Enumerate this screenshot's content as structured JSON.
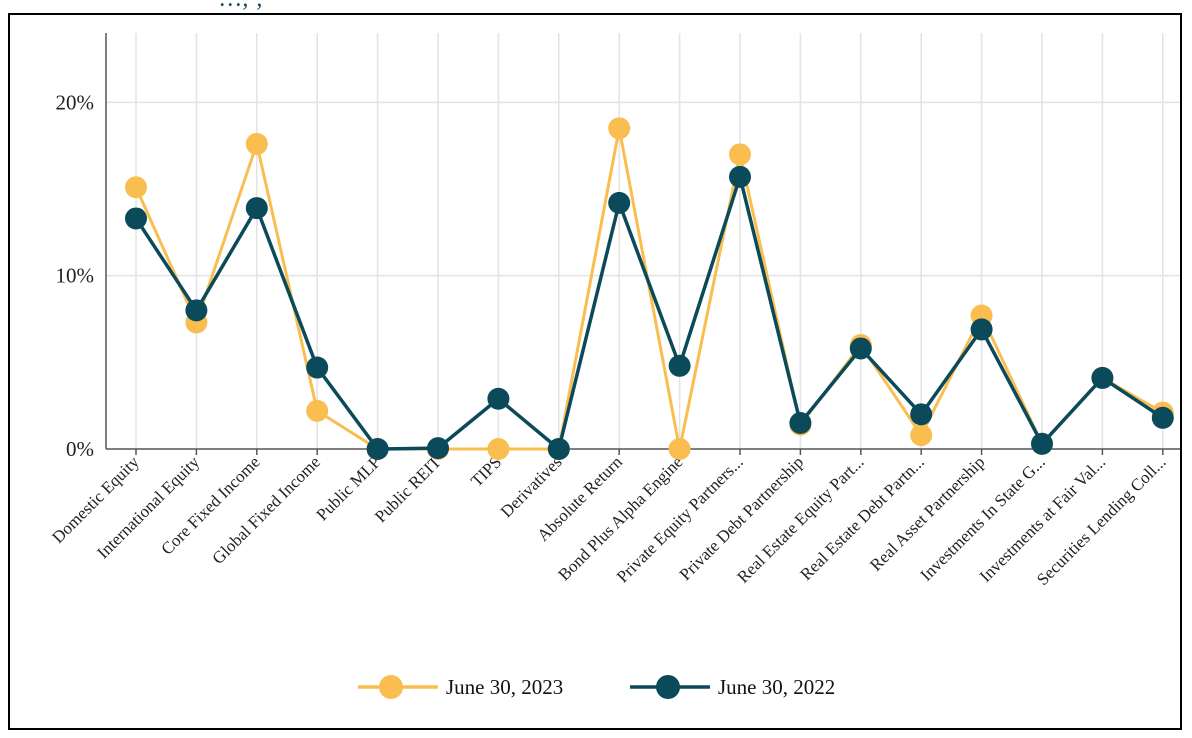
{
  "title_fragment": "…, ,",
  "colors": {
    "series_2023": "#f9be4f",
    "series_2022": "#0b4a5a",
    "grid": "#e3e3e3",
    "axis": "#555555"
  },
  "chart_data": {
    "type": "line",
    "title": "",
    "xlabel": "",
    "ylabel": "",
    "ylim": [
      0,
      0.24
    ],
    "y_ticks": [
      {
        "value": 0,
        "label": "0%"
      },
      {
        "value": 0.1,
        "label": "10%"
      },
      {
        "value": 0.2,
        "label": "20%"
      }
    ],
    "categories": [
      "Domestic Equity",
      "International Equity",
      "Core Fixed Income",
      "Global Fixed Income",
      "Public MLP",
      "Public REIT",
      "TIPS",
      "Derivatives",
      "Absolute Return",
      "Bond Plus Alpha Engine",
      "Private Equity Partners...",
      "Private Debt Partnership",
      "Real Estate Equity Part...",
      "Real Estate Debt Partn...",
      "Real Asset Partnership",
      "Investments In State G...",
      "Investments at Fair Val...",
      "Securities Lending Coll..."
    ],
    "series": [
      {
        "name": "June 30, 2023",
        "color": "#f9be4f",
        "values": [
          0.151,
          0.073,
          0.176,
          0.022,
          0.0,
          0.0,
          0.0,
          0.0,
          0.185,
          0.0,
          0.17,
          0.014,
          0.06,
          0.008,
          0.077,
          0.003,
          0.041,
          0.021
        ]
      },
      {
        "name": "June 30, 2022",
        "color": "#0b4a5a",
        "values": [
          0.133,
          0.08,
          0.139,
          0.047,
          0.0,
          0.0005,
          0.029,
          0.0,
          0.142,
          0.048,
          0.157,
          0.015,
          0.058,
          0.02,
          0.069,
          0.003,
          0.041,
          0.018
        ]
      }
    ],
    "grid": true,
    "legend_position": "bottom-center"
  }
}
